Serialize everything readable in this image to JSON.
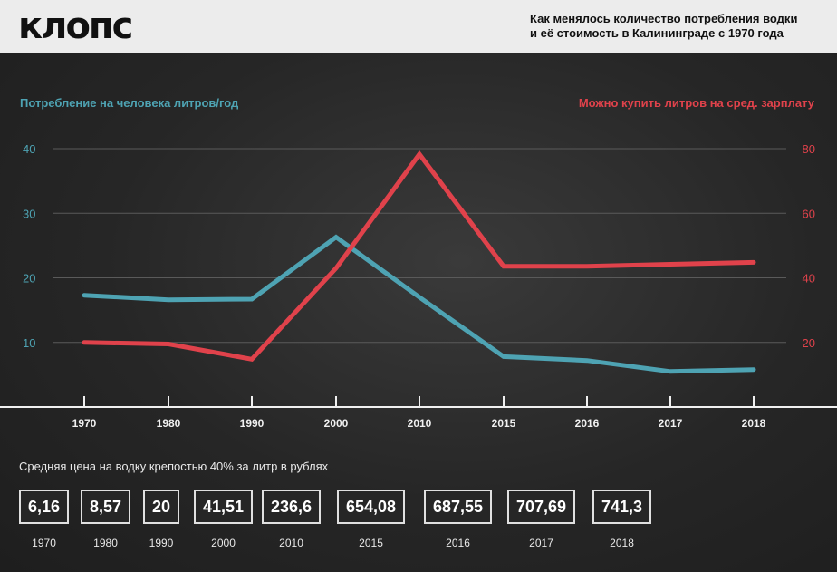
{
  "header": {
    "logo": "клопс",
    "title_line1": "Как менялось количество потребления водки",
    "title_line2": "и её стоимость в Калининграде с 1970 года"
  },
  "colors": {
    "left": "#4ea3b3",
    "right": "#e0424b"
  },
  "chart_data": {
    "type": "line",
    "categories": [
      "1970",
      "1980",
      "1990",
      "2000",
      "2010",
      "2015",
      "2016",
      "2017",
      "2018"
    ],
    "left_axis": {
      "label": "Потребление на человека литров/год",
      "ticks": [
        "10",
        "20",
        "30",
        "40"
      ],
      "ylim": [
        0,
        40
      ]
    },
    "right_axis": {
      "label": "Можно купить литров на сред. зарплату",
      "ticks": [
        "20",
        "40",
        "60",
        "80"
      ],
      "ylim": [
        0,
        80
      ]
    },
    "series": [
      {
        "name": "Потребление на человека литров/год",
        "axis": "left",
        "values": [
          17.3,
          16.6,
          16.7,
          26.3,
          17.0,
          7.8,
          7.2,
          5.5,
          5.8
        ]
      },
      {
        "name": "Можно купить литров на сред. зарплату",
        "axis": "right",
        "values": [
          20,
          19.5,
          14.8,
          43,
          78.3,
          43.6,
          43.6,
          44.2,
          44.8
        ]
      }
    ],
    "grid": true
  },
  "prices": {
    "caption": "Средняя цена на водку крепостью 40% за литр в рублях",
    "items": [
      {
        "value": "6,16",
        "year": "1970"
      },
      {
        "value": "8,57",
        "year": "1980"
      },
      {
        "value": "20",
        "year": "1990"
      },
      {
        "value": "41,51",
        "year": "2000"
      },
      {
        "value": "236,6",
        "year": "2010"
      },
      {
        "value": "654,08",
        "year": "2015"
      },
      {
        "value": "687,55",
        "year": "2016"
      },
      {
        "value": "707,69",
        "year": "2017"
      },
      {
        "value": "741,3",
        "year": "2018"
      }
    ]
  }
}
